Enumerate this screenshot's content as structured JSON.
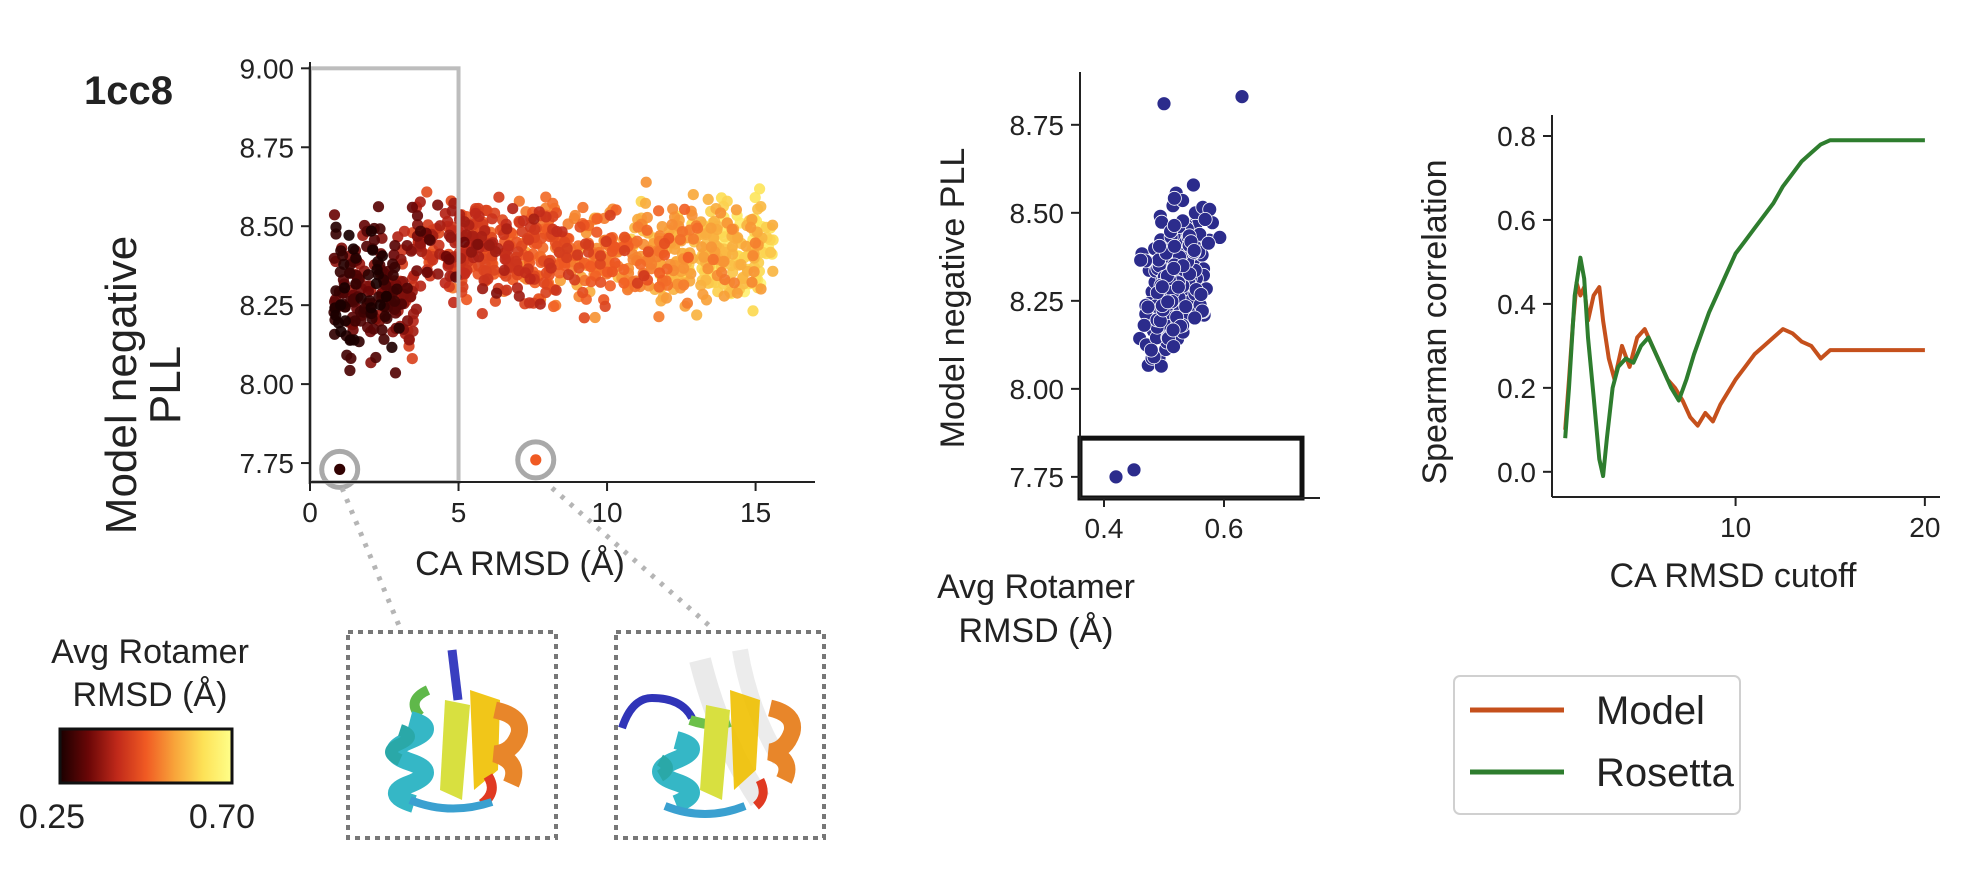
{
  "panel_label": "1cc8",
  "colorbar": {
    "title_line1": "Avg Rotamer",
    "title_line2": "RMSD (Å)",
    "min_label": "0.25",
    "max_label": "0.70",
    "colors": [
      "#1a0000",
      "#6b0707",
      "#c0291a",
      "#f05a23",
      "#f8a43a",
      "#fde257",
      "#ffff8a"
    ]
  },
  "structure_insets": [
    {
      "name": "low-rmsd-structure",
      "rmsd": 1.0
    },
    {
      "name": "high-rmsd-structure",
      "rmsd": 7.6
    }
  ],
  "chart_data": [
    {
      "type": "scatter",
      "id": "pll-vs-ca-rmsd",
      "title": "",
      "xlabel": "CA RMSD (Å)",
      "ylabel_line1": "Model negative",
      "ylabel_line2": "PLL",
      "xlim": [
        0,
        17
      ],
      "ylim": [
        7.69,
        9.02
      ],
      "xticks": [
        0,
        5,
        10,
        15
      ],
      "xtick_labels": [
        "0",
        "5",
        "10",
        "15"
      ],
      "yticks": [
        7.75,
        8.0,
        8.25,
        8.5,
        8.75,
        9.0
      ],
      "ytick_labels": [
        "7.75",
        "8.00",
        "8.25",
        "8.50",
        "8.75",
        "9.00"
      ],
      "color_by": "Avg Rotamer RMSD (Å)",
      "color_range": [
        0.25,
        0.7
      ],
      "points_description": "Approximately 1,000 sampled decoys, x from 0.8 to 15.5 Å, y mostly 7.9–8.9; low-rotamer-RMSD (dark) points concentrated at low CA RMSD",
      "selection_box": {
        "x": [
          0,
          5
        ],
        "y": [
          7.69,
          9.0
        ]
      },
      "highlighted_points": [
        {
          "x": 1.0,
          "y": 7.73
        },
        {
          "x": 7.6,
          "y": 7.76
        }
      ]
    },
    {
      "type": "scatter",
      "id": "pll-vs-rotamer-rmsd",
      "title": "",
      "xlabel_line1": "Avg Rotamer",
      "xlabel_line2": "RMSD (Å)",
      "ylabel": "Model negative PLL",
      "xlim": [
        0.36,
        0.76
      ],
      "ylim": [
        7.69,
        8.9
      ],
      "xticks": [
        0.4,
        0.6
      ],
      "xtick_labels": [
        "0.4",
        "0.6"
      ],
      "yticks": [
        7.75,
        8.0,
        8.25,
        8.5,
        8.75
      ],
      "ytick_labels": [
        "7.75",
        "8.00",
        "8.25",
        "8.50",
        "8.75"
      ],
      "point_color": "#2c2c8c",
      "points_description": "Roughly 250 decoys with CA RMSD < 5 Å, x mostly 0.38–0.66, y 7.74–8.82",
      "extreme_points": [
        {
          "x": 0.42,
          "y": 7.75
        },
        {
          "x": 0.45,
          "y": 7.77
        },
        {
          "x": 0.5,
          "y": 8.81
        },
        {
          "x": 0.63,
          "y": 8.83
        }
      ],
      "selection_box": {
        "x": [
          0.36,
          0.73
        ],
        "y": [
          7.69,
          7.86
        ]
      }
    },
    {
      "type": "line",
      "id": "spearman-vs-cutoff",
      "title": "",
      "xlabel": "CA RMSD cutoff",
      "ylabel": "Spearman correlation",
      "xlim": [
        0.3,
        20.8
      ],
      "ylim": [
        -0.06,
        0.85
      ],
      "xticks": [
        10,
        20
      ],
      "xtick_labels": [
        "10",
        "20"
      ],
      "yticks": [
        0.0,
        0.2,
        0.4,
        0.6,
        0.8
      ],
      "ytick_labels": [
        "0.0",
        "0.2",
        "0.4",
        "0.6",
        "0.8"
      ],
      "legend": {
        "position": "bottom",
        "entries": [
          "Model",
          "Rosetta"
        ]
      },
      "series": [
        {
          "name": "Model",
          "color": "#c5501c",
          "x": [
            1.0,
            1.2,
            1.4,
            1.6,
            1.8,
            2.0,
            2.2,
            2.5,
            2.8,
            3.0,
            3.3,
            3.6,
            4.0,
            4.4,
            4.8,
            5.2,
            5.6,
            6.0,
            6.4,
            6.8,
            7.2,
            7.6,
            8.0,
            8.4,
            8.8,
            9.2,
            9.6,
            10.0,
            10.5,
            11.0,
            11.5,
            12.0,
            12.5,
            13.0,
            13.5,
            14.0,
            14.5,
            15.0,
            16.0,
            17.0,
            18.0,
            19.0,
            20.0
          ],
          "y": [
            0.1,
            0.22,
            0.35,
            0.45,
            0.42,
            0.44,
            0.36,
            0.42,
            0.44,
            0.36,
            0.27,
            0.22,
            0.3,
            0.25,
            0.32,
            0.34,
            0.3,
            0.26,
            0.22,
            0.2,
            0.17,
            0.13,
            0.11,
            0.14,
            0.12,
            0.16,
            0.19,
            0.22,
            0.25,
            0.28,
            0.3,
            0.32,
            0.34,
            0.33,
            0.31,
            0.3,
            0.27,
            0.29,
            0.29,
            0.29,
            0.29,
            0.29,
            0.29
          ]
        },
        {
          "name": "Rosetta",
          "color": "#2e7d2e",
          "x": [
            1.0,
            1.2,
            1.5,
            1.8,
            2.0,
            2.2,
            2.5,
            2.8,
            3.0,
            3.2,
            3.5,
            3.8,
            4.2,
            4.6,
            5.0,
            5.4,
            5.8,
            6.2,
            6.6,
            7.0,
            7.4,
            7.8,
            8.2,
            8.6,
            9.0,
            9.5,
            10.0,
            10.5,
            11.0,
            11.5,
            12.0,
            12.5,
            13.0,
            13.5,
            14.0,
            14.5,
            15.0,
            16.0,
            17.0,
            18.0,
            19.0,
            20.0
          ],
          "y": [
            0.08,
            0.2,
            0.42,
            0.51,
            0.46,
            0.32,
            0.18,
            0.03,
            -0.01,
            0.08,
            0.2,
            0.25,
            0.27,
            0.26,
            0.3,
            0.32,
            0.28,
            0.24,
            0.2,
            0.17,
            0.22,
            0.28,
            0.33,
            0.38,
            0.42,
            0.47,
            0.52,
            0.55,
            0.58,
            0.61,
            0.64,
            0.68,
            0.71,
            0.74,
            0.76,
            0.78,
            0.79,
            0.79,
            0.79,
            0.79,
            0.79,
            0.79
          ]
        }
      ]
    }
  ]
}
